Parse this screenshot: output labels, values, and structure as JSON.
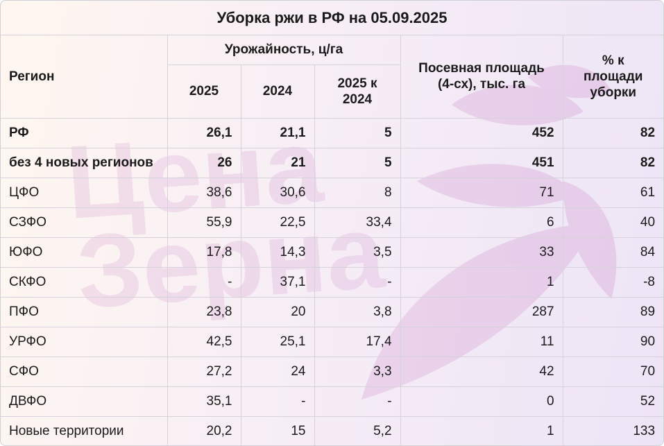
{
  "title": "Уборка ржи в РФ на 05.09.2025",
  "watermark": {
    "line1": "Цена",
    "line2": "Зерна"
  },
  "headers": {
    "region": "Регион",
    "yield_group": "Урожайность, ц/га",
    "year_2025": "2025",
    "year_2024": "2024",
    "diff": "2025 к 2024",
    "sown_area": "Посевная площадь (4-сх), тыс. га",
    "harvest_pct": "% к площади уборки"
  },
  "rows": [
    {
      "region": "РФ",
      "y2025": "26,1",
      "y2024": "21,1",
      "diff": "5",
      "area": "452",
      "pct": "82",
      "bold": true
    },
    {
      "region": "без 4 новых регионов",
      "y2025": "26",
      "y2024": "21",
      "diff": "5",
      "area": "451",
      "pct": "82",
      "bold": true
    },
    {
      "region": "ЦФО",
      "y2025": "38,6",
      "y2024": "30,6",
      "diff": "8",
      "area": "71",
      "pct": "61",
      "bold": false
    },
    {
      "region": "СЗФО",
      "y2025": "55,9",
      "y2024": "22,5",
      "diff": "33,4",
      "area": "6",
      "pct": "40",
      "bold": false
    },
    {
      "region": "ЮФО",
      "y2025": "17,8",
      "y2024": "14,3",
      "diff": "3,5",
      "area": "33",
      "pct": "84",
      "bold": false
    },
    {
      "region": "СКФО",
      "y2025": "-",
      "y2024": "37,1",
      "diff": "-",
      "area": "1",
      "pct": "-8",
      "bold": false
    },
    {
      "region": "ПФО",
      "y2025": "23,8",
      "y2024": "20",
      "diff": "3,8",
      "area": "287",
      "pct": "89",
      "bold": false
    },
    {
      "region": "УРФО",
      "y2025": "42,5",
      "y2024": "25,1",
      "diff": "17,4",
      "area": "11",
      "pct": "90",
      "bold": false
    },
    {
      "region": "СФО",
      "y2025": "27,2",
      "y2024": "24",
      "diff": "3,3",
      "area": "42",
      "pct": "70",
      "bold": false
    },
    {
      "region": "ДВФО",
      "y2025": "35,1",
      "y2024": "-",
      "diff": "-",
      "area": "0",
      "pct": "52",
      "bold": false
    },
    {
      "region": "Новые территории",
      "y2025": "20,2",
      "y2024": "15",
      "diff": "5,2",
      "area": "1",
      "pct": "133",
      "bold": false
    }
  ]
}
